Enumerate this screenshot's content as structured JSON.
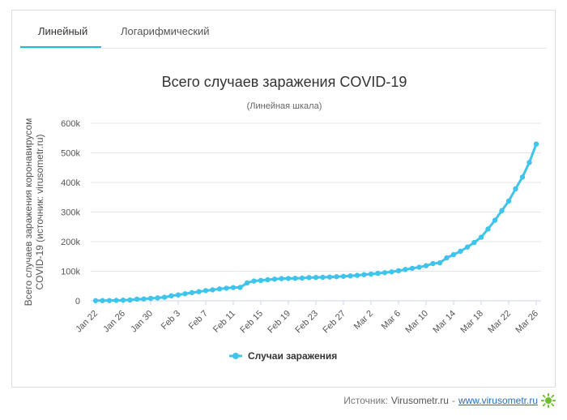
{
  "tabs": [
    {
      "label": "Линейный",
      "active": true
    },
    {
      "label": "Логарифмический",
      "active": false
    }
  ],
  "footer": {
    "source_label": "Источник:",
    "source_site": "Virusometr.ru",
    "separator": "-",
    "source_link": "www.virusometr.ru",
    "icon": "virus-icon"
  },
  "colors": {
    "series": "#3fc4ec",
    "accent": "#29b6e6",
    "icon": "#6cbe2d"
  },
  "chart_data": {
    "type": "line",
    "title": "Всего случаев заражения COVID-19",
    "subtitle": "(Линейная шкала)",
    "ylabel_lines": [
      "Всего случаев заражения коронавирусом",
      "COVID-19 (источник: virusometr.ru)"
    ],
    "ylim": [
      0,
      600000
    ],
    "yticks": [
      {
        "value": 0,
        "label": "0"
      },
      {
        "value": 100000,
        "label": "100k"
      },
      {
        "value": 200000,
        "label": "200k"
      },
      {
        "value": 300000,
        "label": "300k"
      },
      {
        "value": 400000,
        "label": "400k"
      },
      {
        "value": 500000,
        "label": "500k"
      },
      {
        "value": 600000,
        "label": "600k"
      }
    ],
    "xtick_labels": [
      "Jan 22",
      "Jan 26",
      "Jan 30",
      "Feb 3",
      "Feb 7",
      "Feb 11",
      "Feb 15",
      "Feb 19",
      "Feb 23",
      "Feb 27",
      "Mar 2",
      "Mar 6",
      "Mar 10",
      "Mar 14",
      "Mar 18",
      "Mar 22",
      "Mar 26"
    ],
    "xtick_every": 4,
    "legend": "bottom",
    "grid": true,
    "series": [
      {
        "name": "Случаи заражения",
        "values": [
          555,
          654,
          941,
          1434,
          2118,
          2927,
          5578,
          6166,
          8234,
          9927,
          12038,
          16787,
          19881,
          23892,
          27635,
          30794,
          34391,
          37120,
          40150,
          42762,
          44802,
          45221,
          60368,
          66885,
          69030,
          71224,
          73258,
          75136,
          75639,
          76197,
          76819,
          78572,
          78958,
          79561,
          80406,
          81388,
          82746,
          84112,
          86011,
          88369,
          90306,
          92840,
          95120,
          97886,
          101801,
          105847,
          109821,
          113590,
          118620,
          125875,
          128352,
          145205,
          156101,
          167454,
          181574,
          197102,
          214821,
          242570,
          272208,
          304507,
          336953,
          378235,
          418045,
          467653,
          529591
        ]
      }
    ]
  }
}
